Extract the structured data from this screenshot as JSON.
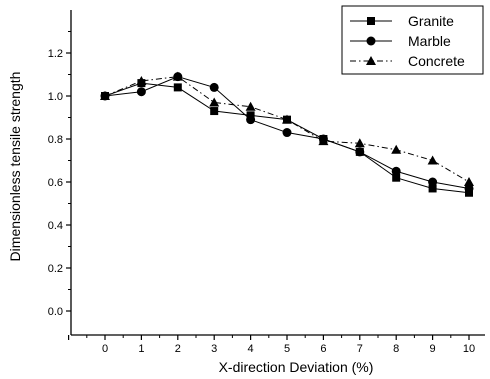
{
  "chart_data": {
    "type": "line",
    "title": "",
    "xlabel": "X-direction Deviation  (%)",
    "ylabel": "Dimensionless tensile strength",
    "x": [
      0,
      1,
      2,
      3,
      4,
      5,
      6,
      7,
      8,
      9,
      10
    ],
    "xlim": [
      -1,
      10.5
    ],
    "ylim": [
      0,
      1.4
    ],
    "x_ticks": [
      0,
      1,
      2,
      3,
      4,
      5,
      6,
      7,
      8,
      9,
      10
    ],
    "y_ticks": [
      0.0,
      0.2,
      0.4,
      0.6,
      0.8,
      1.0,
      1.2
    ],
    "y_tick_labels": [
      "0.0",
      "0.2",
      "0.4",
      "0.6",
      "0.8",
      "1.0",
      "1.2"
    ],
    "grid": false,
    "legend_position": "top-right",
    "series": [
      {
        "name": "Granite",
        "marker": "square",
        "line_style": "solid",
        "values": [
          1.0,
          1.06,
          1.04,
          0.93,
          0.91,
          0.89,
          0.8,
          0.74,
          0.62,
          0.57,
          0.55
        ]
      },
      {
        "name": "Marble",
        "marker": "circle",
        "line_style": "solid",
        "values": [
          1.0,
          1.02,
          1.09,
          1.04,
          0.89,
          0.83,
          0.8,
          0.74,
          0.65,
          0.6,
          0.57
        ]
      },
      {
        "name": "Concrete",
        "marker": "triangle",
        "line_style": "dashdot",
        "values": [
          1.0,
          1.07,
          1.09,
          0.97,
          0.95,
          0.89,
          0.79,
          0.78,
          0.75,
          0.7,
          0.6
        ]
      }
    ]
  }
}
